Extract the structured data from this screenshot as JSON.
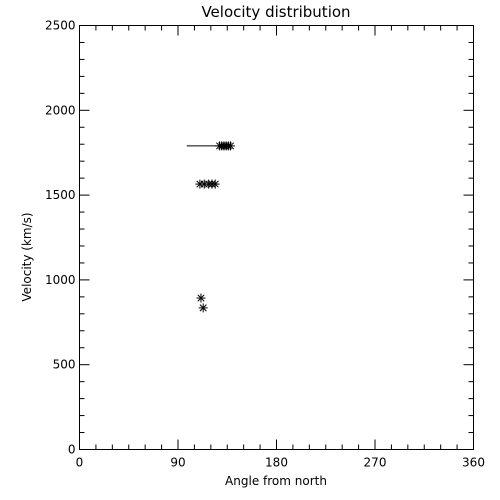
{
  "chart_data": {
    "type": "scatter",
    "title": "Velocity distribution",
    "xlabel": "Angle from north",
    "ylabel": "Velocity (km/s)",
    "xlim": [
      0,
      360
    ],
    "ylim": [
      0,
      2500
    ],
    "xticks": [
      0,
      90,
      180,
      270,
      360
    ],
    "yticks": [
      0,
      500,
      1000,
      1500,
      2000,
      2500
    ],
    "x_minor_step": 15,
    "y_minor_step": 100,
    "grid": false,
    "marker": "asterisk",
    "color": "#000000",
    "points": [
      {
        "x": 128,
        "y": 1790
      },
      {
        "x": 130,
        "y": 1790
      },
      {
        "x": 132,
        "y": 1790
      },
      {
        "x": 134,
        "y": 1790
      },
      {
        "x": 136,
        "y": 1790
      },
      {
        "x": 138,
        "y": 1790
      },
      {
        "x": 110,
        "y": 1565
      },
      {
        "x": 114,
        "y": 1565
      },
      {
        "x": 118,
        "y": 1565
      },
      {
        "x": 121,
        "y": 1565
      },
      {
        "x": 124,
        "y": 1565
      },
      {
        "x": 111,
        "y": 893
      },
      {
        "x": 113,
        "y": 835
      }
    ],
    "error_bars": [
      {
        "x_from": 98,
        "x_to": 130,
        "y": 1790
      }
    ]
  }
}
